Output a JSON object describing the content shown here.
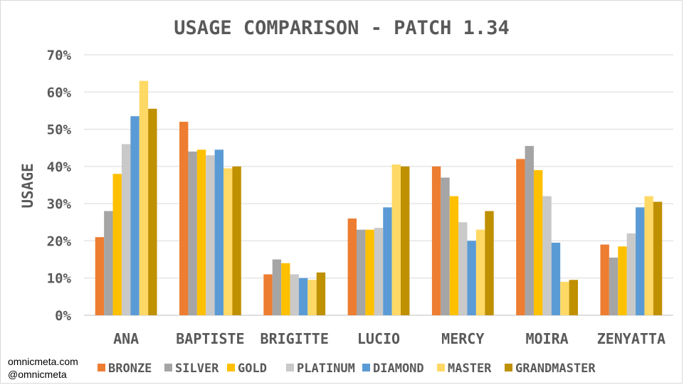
{
  "credits": {
    "site": "omnicmeta.com",
    "handle": "@omnicmeta"
  },
  "chart_data": {
    "type": "bar",
    "title": "USAGE COMPARISON - PATCH 1.34",
    "xlabel": "",
    "ylabel": "USAGE",
    "ylim": [
      0,
      70
    ],
    "yticks": [
      0,
      10,
      20,
      30,
      40,
      50,
      60,
      70
    ],
    "ytick_labels": [
      "0%",
      "10%",
      "20%",
      "30%",
      "40%",
      "50%",
      "60%",
      "70%"
    ],
    "grid": true,
    "legend": "bottom",
    "categories": [
      "ANA",
      "BAPTISTE",
      "BRIGITTE",
      "LUCIO",
      "MERCY",
      "MOIRA",
      "ZENYATTA"
    ],
    "series": [
      {
        "name": "BRONZE",
        "color": "#ed7d31",
        "values": [
          21,
          52,
          11,
          26,
          40,
          42,
          19
        ]
      },
      {
        "name": "SILVER",
        "color": "#a5a5a5",
        "values": [
          28,
          44,
          15,
          23,
          37,
          45.5,
          15.5
        ]
      },
      {
        "name": "GOLD",
        "color": "#ffc000",
        "values": [
          38,
          44.5,
          14,
          23,
          32,
          39,
          18.5
        ]
      },
      {
        "name": "PLATINUM",
        "color": "#c9c9c9",
        "values": [
          46,
          43,
          11,
          23.5,
          25,
          32,
          22
        ]
      },
      {
        "name": "DIAMOND",
        "color": "#5b9bd5",
        "values": [
          53.5,
          44.5,
          10,
          29,
          20,
          19.5,
          29
        ]
      },
      {
        "name": "MASTER",
        "color": "#ffd966",
        "values": [
          63,
          39.5,
          9.5,
          40.5,
          23,
          9,
          32
        ]
      },
      {
        "name": "GRANDMASTER",
        "color": "#bf9000",
        "values": [
          55.5,
          40,
          11.5,
          40,
          28,
          9.5,
          30.5
        ]
      }
    ]
  }
}
